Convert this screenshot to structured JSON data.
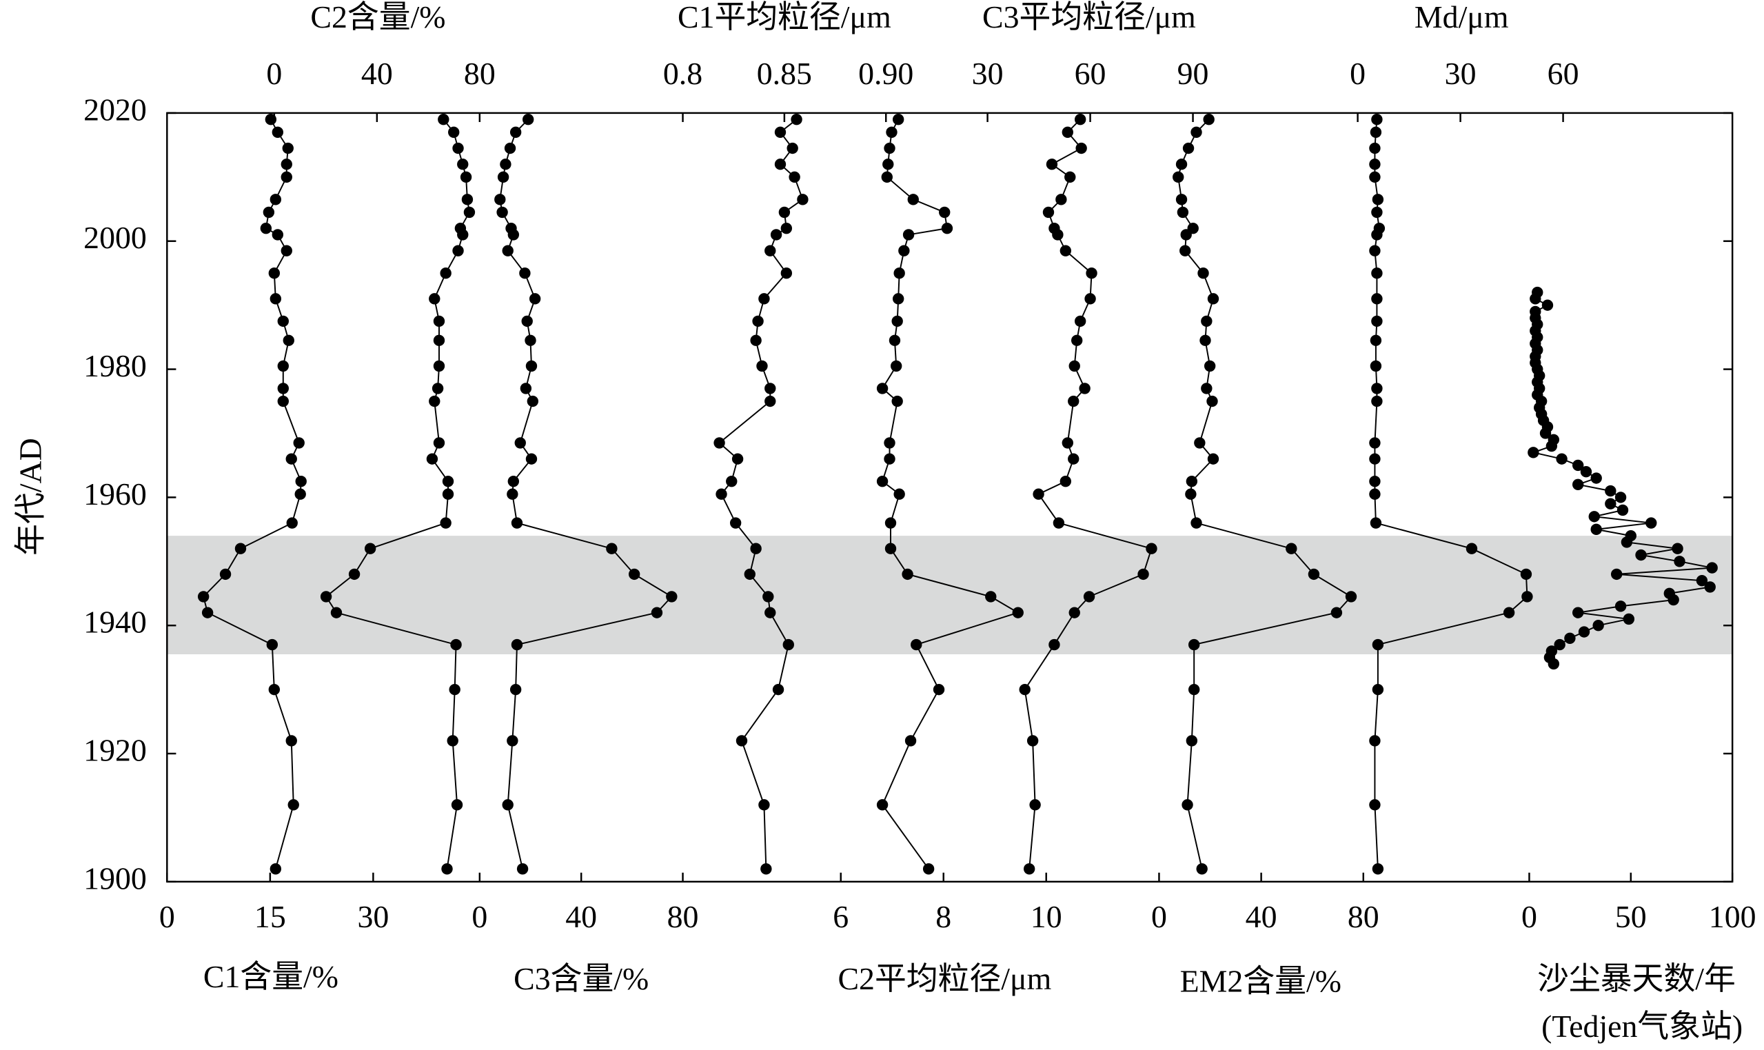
{
  "chart_data": {
    "type": "line",
    "ylabel": "年代/AD",
    "ylim": [
      1900,
      2020
    ],
    "yticks": [
      1900,
      1920,
      1940,
      1960,
      1980,
      2000,
      2020
    ],
    "shaded_range": [
      1935.5,
      1954
    ],
    "y": [
      2019,
      2017,
      2014.5,
      2012,
      2010,
      2006.5,
      2004.5,
      2002,
      2001,
      1998.5,
      1995,
      1991,
      1987.5,
      1984.5,
      1980.5,
      1977,
      1975,
      1968.5,
      1966,
      1962.5,
      1960.5,
      1956,
      1952,
      1948,
      1944.5,
      1942,
      1937,
      1930,
      1922,
      1912,
      1902
    ],
    "series": [
      {
        "name": "C1含量/%",
        "axis": "bottom",
        "color": "#000000",
        "xlim": [
          0,
          45
        ],
        "xticks": [
          0,
          15,
          30
        ],
        "values": [
          15.1,
          16.1,
          17.6,
          17.4,
          17.4,
          15.8,
          14.8,
          14.4,
          16.1,
          17.4,
          15.6,
          15.8,
          16.9,
          17.7,
          16.9,
          16.9,
          16.9,
          19.2,
          18.1,
          19.5,
          19.4,
          18.2,
          10.7,
          8.5,
          5.3,
          5.9,
          15.3,
          15.6,
          18.1,
          18.4,
          15.8
        ]
      },
      {
        "name": "C3含量/%",
        "axis": "bottom",
        "color": "#000000",
        "xlim": [
          0,
          80
        ],
        "xticks": [
          0,
          40,
          80
        ],
        "values": [
          19.1,
          14.2,
          12.0,
          10.2,
          9.3,
          8.0,
          8.9,
          12.4,
          13.3,
          11.1,
          17.8,
          21.8,
          18.7,
          20.0,
          20.4,
          18.2,
          20.9,
          16.0,
          20.4,
          13.3,
          12.9,
          14.7,
          52.0,
          60.9,
          75.6,
          69.8,
          14.7,
          14.2,
          12.9,
          11.1,
          16.9
        ]
      },
      {
        "name": "C2平均粒径/μm",
        "axis": "bottom",
        "color": "#000000",
        "xlim": [
          6,
          10
        ],
        "xticks": [
          6,
          8,
          10
        ],
        "values": [
          7.12,
          6.99,
          6.95,
          6.92,
          6.9,
          7.41,
          8.02,
          8.07,
          7.32,
          7.23,
          7.14,
          7.12,
          7.1,
          7.05,
          7.08,
          6.81,
          7.1,
          6.95,
          6.95,
          6.81,
          7.14,
          6.97,
          6.97,
          7.3,
          8.92,
          9.45,
          7.47,
          7.91,
          7.36,
          6.81,
          7.71
        ]
      },
      {
        "name": "EM2含量/%",
        "axis": "bottom",
        "color": "#000000",
        "xlim": [
          0,
          80
        ],
        "xticks": [
          0,
          40,
          80
        ],
        "values": [
          19.5,
          14.6,
          11.5,
          8.8,
          7.5,
          8.8,
          9.3,
          13.3,
          10.6,
          10.2,
          17.3,
          21.2,
          18.6,
          18.1,
          19.9,
          18.6,
          20.8,
          15.9,
          21.2,
          12.8,
          12.4,
          14.6,
          51.8,
          60.6,
          75.2,
          69.5,
          13.7,
          13.7,
          12.8,
          11.1,
          16.8
        ]
      },
      {
        "name": "沙尘暴天数/年",
        "station": "(Tedjen气象站)",
        "axis": "bottom",
        "color": "#000000",
        "xlim": [
          0,
          100
        ],
        "xticks": [
          0,
          50,
          100
        ],
        "y": [
          1992,
          1991,
          1990,
          1989,
          1988,
          1987,
          1986,
          1985,
          1984,
          1983,
          1982,
          1981,
          1980,
          1979,
          1978,
          1977,
          1976,
          1975,
          1974,
          1973,
          1972,
          1971,
          1970,
          1969,
          1968,
          1967,
          1966,
          1965,
          1964,
          1963,
          1962,
          1961,
          1960,
          1959,
          1958,
          1957,
          1956,
          1955,
          1954,
          1953,
          1952,
          1951,
          1950,
          1949,
          1948,
          1947,
          1946,
          1945,
          1944,
          1943,
          1942,
          1941,
          1940,
          1939,
          1938,
          1937,
          1936,
          1935,
          1934
        ],
        "values": [
          4,
          3,
          9,
          3,
          3,
          4,
          3,
          4,
          3,
          4,
          3,
          3,
          4,
          5,
          4,
          5,
          4,
          6,
          5,
          6,
          7,
          9,
          8,
          12,
          11,
          2,
          16,
          24,
          28,
          33,
          24,
          40,
          45,
          40,
          46,
          32,
          60,
          33,
          50,
          48,
          73,
          55,
          74,
          90,
          43,
          85,
          89,
          69,
          71,
          45,
          24,
          49,
          34,
          27,
          20,
          15,
          11,
          10,
          12
        ]
      },
      {
        "name": "C2含量/%",
        "axis": "top",
        "color": "#000000",
        "xlim": [
          0,
          80
        ],
        "xticks": [
          0,
          40,
          80
        ],
        "values": [
          65.9,
          69.9,
          71.6,
          73.4,
          74.7,
          75.2,
          76.0,
          72.5,
          73.4,
          71.6,
          66.8,
          62.4,
          64.2,
          64.2,
          64.2,
          63.7,
          62.4,
          64.2,
          61.5,
          67.7,
          67.7,
          66.8,
          37.4,
          31.2,
          20.2,
          24.2,
          70.8,
          70.3,
          69.5,
          71.2,
          67.3
        ]
      },
      {
        "name": "C1平均粒径/μm",
        "axis": "top",
        "color": "#000000",
        "xlim": [
          0.8,
          0.9
        ],
        "xticks": [
          0.8,
          0.85,
          {
            "value": 0.9,
            "label": "0.90"
          }
        ],
        "values": [
          0.856,
          0.848,
          0.854,
          0.848,
          0.855,
          0.859,
          0.85,
          0.851,
          0.846,
          0.843,
          0.851,
          0.84,
          0.837,
          0.836,
          0.839,
          0.843,
          0.843,
          0.818,
          0.827,
          0.824,
          0.819,
          0.826,
          0.836,
          0.833,
          0.842,
          0.843,
          0.852,
          0.847,
          0.829,
          0.84,
          0.841
        ]
      },
      {
        "name": "C3平均粒径/μm",
        "axis": "top",
        "color": "#000000",
        "xlim": [
          30,
          90
        ],
        "xticks": [
          30,
          60,
          90
        ],
        "values": [
          57.1,
          53.4,
          57.4,
          48.8,
          54.1,
          51.5,
          47.8,
          49.5,
          50.5,
          52.8,
          60.4,
          60.0,
          57.1,
          56.1,
          55.4,
          58.4,
          55.1,
          53.4,
          55.1,
          52.8,
          44.9,
          50.8,
          77.9,
          75.5,
          59.7,
          55.4,
          49.5,
          40.9,
          43.2,
          43.9,
          42.2
        ]
      },
      {
        "name": "Md/μm",
        "axis": "top",
        "color": "#000000",
        "xlim": [
          0,
          60
        ],
        "xticks": [
          0,
          30,
          60
        ],
        "values": [
          5.6,
          5.3,
          5.0,
          5.0,
          5.0,
          5.9,
          5.6,
          6.3,
          5.6,
          5.0,
          5.6,
          5.6,
          5.6,
          5.3,
          5.3,
          5.6,
          5.6,
          5.0,
          5.0,
          5.0,
          5.0,
          5.3,
          33.3,
          49.2,
          49.5,
          44.2,
          5.9,
          5.9,
          5.0,
          5.0,
          5.9
        ]
      }
    ]
  }
}
